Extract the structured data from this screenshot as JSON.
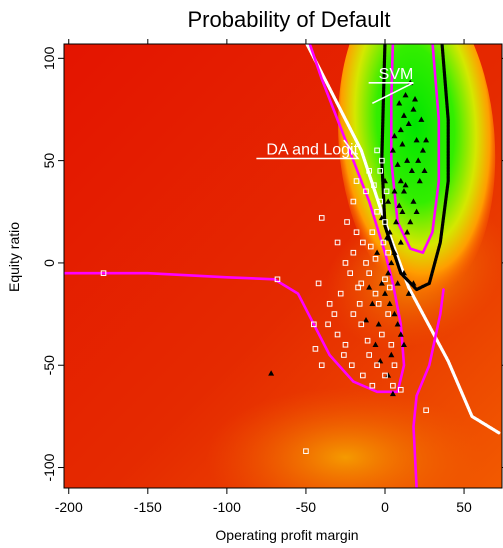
{
  "chart_data": {
    "type": "heatmap",
    "title": "Probability of Default",
    "xlabel": "Operating profit margin",
    "ylabel": "Equity ratio",
    "xlim": [
      -203,
      74
    ],
    "ylim": [
      -110,
      107
    ],
    "xticks": [
      -200,
      -150,
      -100,
      -50,
      0,
      50
    ],
    "yticks": [
      -100,
      -50,
      0,
      50,
      100
    ],
    "grid": false,
    "heatmap_colors": {
      "low": "#e60000",
      "mid": "#ff9900",
      "high": "#00e600"
    },
    "annotations": [
      {
        "text": "SVM",
        "x": -4,
        "y": 90,
        "line_to": [
          -8,
          78
        ]
      },
      {
        "text": "DA and Logit",
        "x": -75,
        "y": 53,
        "line_to": [
          -26,
          60
        ]
      }
    ],
    "boundaries": [
      {
        "name": "DA and Logit",
        "color": "#ffffff",
        "points": [
          [
            -50,
            108
          ],
          [
            -15,
            55
          ],
          [
            0,
            20
          ],
          [
            15,
            -12
          ],
          [
            40,
            -48
          ],
          [
            55,
            -75
          ],
          [
            72,
            -83
          ]
        ]
      },
      {
        "name": "SVM",
        "color": "#000000",
        "points": [
          [
            0,
            108
          ],
          [
            -1,
            80
          ],
          [
            -2,
            50
          ],
          [
            0,
            18
          ],
          [
            10,
            -5
          ],
          [
            20,
            -13
          ],
          [
            28,
            -10
          ],
          [
            35,
            10
          ],
          [
            40,
            40
          ],
          [
            40,
            70
          ],
          [
            36,
            108
          ]
        ]
      },
      {
        "name": "SVM inner",
        "color": "#ff00ff",
        "points": [
          [
            5,
            108
          ],
          [
            4,
            80
          ],
          [
            4,
            50
          ],
          [
            8,
            20
          ],
          [
            16,
            7
          ],
          [
            24,
            5
          ],
          [
            30,
            15
          ],
          [
            34,
            40
          ],
          [
            34,
            70
          ],
          [
            30,
            108
          ]
        ]
      },
      {
        "name": "probability contour lower",
        "color": "#ff00ff",
        "points": [
          [
            -205,
            -5
          ],
          [
            -150,
            -5
          ],
          [
            -100,
            -7
          ],
          [
            -70,
            -8
          ],
          [
            -55,
            -15
          ],
          [
            -45,
            -30
          ],
          [
            -35,
            -45
          ],
          [
            -20,
            -58
          ],
          [
            -5,
            -63
          ],
          [
            8,
            -63
          ],
          [
            12,
            -50
          ],
          [
            10,
            -30
          ],
          [
            5,
            -10
          ],
          [
            0,
            5
          ],
          [
            -10,
            30
          ],
          [
            -25,
            60
          ],
          [
            -40,
            90
          ],
          [
            -48,
            108
          ]
        ]
      },
      {
        "name": "probability contour right",
        "color": "#ff00ff",
        "points": [
          [
            20,
            -110
          ],
          [
            18,
            -80
          ],
          [
            20,
            -65
          ],
          [
            28,
            -50
          ],
          [
            35,
            -25
          ],
          [
            37,
            -13
          ]
        ]
      }
    ],
    "series": [
      {
        "marker": "triangle",
        "color": "#000000",
        "points": [
          [
            -72,
            -54
          ],
          [
            10,
            65
          ],
          [
            12,
            72
          ],
          [
            15,
            68
          ],
          [
            18,
            75
          ],
          [
            20,
            60
          ],
          [
            5,
            55
          ],
          [
            8,
            48
          ],
          [
            14,
            50
          ],
          [
            17,
            45
          ],
          [
            22,
            40
          ],
          [
            24,
            55
          ],
          [
            10,
            40
          ],
          [
            12,
            35
          ],
          [
            18,
            30
          ],
          [
            20,
            25
          ],
          [
            16,
            20
          ],
          [
            14,
            15
          ],
          [
            10,
            10
          ],
          [
            6,
            5
          ],
          [
            4,
            0
          ],
          [
            2,
            -5
          ],
          [
            -2,
            -10
          ],
          [
            0,
            -15
          ],
          [
            3,
            -20
          ],
          [
            6,
            -25
          ],
          [
            8,
            -30
          ],
          [
            10,
            -35
          ],
          [
            12,
            -40
          ],
          [
            4,
            -45
          ],
          [
            -4,
            -30
          ],
          [
            -8,
            -20
          ],
          [
            -10,
            -12
          ],
          [
            -6,
            -40
          ],
          [
            -12,
            -28
          ],
          [
            2,
            30
          ],
          [
            0,
            40
          ],
          [
            6,
            62
          ],
          [
            9,
            78
          ],
          [
            13,
            82
          ],
          [
            16,
            88
          ],
          [
            19,
            80
          ],
          [
            23,
            70
          ],
          [
            26,
            60
          ],
          [
            11,
            58
          ],
          [
            5,
            -64
          ],
          [
            2,
            -55
          ],
          [
            15,
            -15
          ],
          [
            18,
            -10
          ],
          [
            7,
            20
          ],
          [
            9,
            28
          ],
          [
            21,
            50
          ],
          [
            25,
            45
          ],
          [
            -2,
            22
          ],
          [
            1,
            12
          ],
          [
            -5,
            5
          ],
          [
            13,
            38
          ],
          [
            11,
            25
          ],
          [
            3,
            15
          ],
          [
            6,
            35
          ],
          [
            -3,
            -48
          ],
          [
            8,
            -10
          ],
          [
            12,
            -5
          ]
        ]
      },
      {
        "marker": "square",
        "color": "#ffffff",
        "points": [
          [
            -178,
            -5
          ],
          [
            -68,
            -8
          ],
          [
            -50,
            -92
          ],
          [
            -40,
            -50
          ],
          [
            -45,
            -30
          ],
          [
            -35,
            -20
          ],
          [
            -30,
            -35
          ],
          [
            -25,
            -40
          ],
          [
            -20,
            -25
          ],
          [
            -15,
            -30
          ],
          [
            -10,
            -45
          ],
          [
            -5,
            -50
          ],
          [
            0,
            -55
          ],
          [
            5,
            -60
          ],
          [
            10,
            -62
          ],
          [
            -40,
            22
          ],
          [
            -30,
            10
          ],
          [
            -25,
            0
          ],
          [
            -20,
            5
          ],
          [
            -15,
            -10
          ],
          [
            -10,
            -5
          ],
          [
            -8,
            15
          ],
          [
            -5,
            25
          ],
          [
            -3,
            30
          ],
          [
            0,
            20
          ],
          [
            -12,
            35
          ],
          [
            -10,
            45
          ],
          [
            -5,
            55
          ],
          [
            -2,
            50
          ],
          [
            -18,
            15
          ],
          [
            -22,
            -5
          ],
          [
            -28,
            -15
          ],
          [
            -32,
            -25
          ],
          [
            -36,
            -30
          ],
          [
            -16,
            -20
          ],
          [
            -6,
            -15
          ],
          [
            -2,
            -35
          ],
          [
            2,
            -25
          ],
          [
            4,
            -40
          ],
          [
            6,
            -50
          ],
          [
            -14,
            -55
          ],
          [
            -8,
            -60
          ],
          [
            26,
            -72
          ],
          [
            -42,
            -10
          ],
          [
            -24,
            20
          ],
          [
            -20,
            30
          ],
          [
            -18,
            40
          ],
          [
            -14,
            10
          ],
          [
            -6,
            2
          ],
          [
            2,
            5
          ],
          [
            0,
            -8
          ],
          [
            -4,
            -20
          ],
          [
            -26,
            -45
          ],
          [
            -12,
            0
          ],
          [
            -9,
            8
          ],
          [
            -7,
            38
          ],
          [
            -3,
            45
          ],
          [
            1,
            35
          ],
          [
            -1,
            10
          ],
          [
            3,
            -12
          ],
          [
            -21,
            -50
          ],
          [
            -11,
            -38
          ],
          [
            -44,
            -42
          ],
          [
            -17,
            -12
          ]
        ]
      }
    ]
  }
}
